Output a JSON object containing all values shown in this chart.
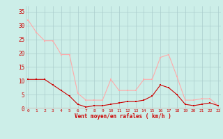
{
  "x": [
    0,
    1,
    2,
    3,
    4,
    5,
    6,
    7,
    8,
    9,
    10,
    11,
    12,
    13,
    14,
    15,
    16,
    17,
    18,
    19,
    20,
    21,
    22,
    23
  ],
  "vent_moyen": [
    10.5,
    10.5,
    10.5,
    8.5,
    6.5,
    4.5,
    1.5,
    0.5,
    1.0,
    1.0,
    1.5,
    2.0,
    2.5,
    2.5,
    3.0,
    4.5,
    8.5,
    7.5,
    5.0,
    1.5,
    1.0,
    1.5,
    2.0,
    1.0
  ],
  "rafales": [
    32.0,
    27.5,
    24.5,
    24.5,
    19.5,
    19.5,
    5.5,
    3.0,
    3.0,
    3.0,
    10.5,
    6.5,
    6.5,
    6.5,
    10.5,
    10.5,
    18.5,
    19.5,
    11.5,
    3.0,
    3.0,
    3.5,
    3.5,
    1.0
  ],
  "moyen_color": "#cc0000",
  "rafales_color": "#ffaaaa",
  "bg_color": "#cceee8",
  "grid_color": "#aacccc",
  "xlabel": "Vent moyen/en rafales ( km/h )",
  "ylabel_ticks": [
    0,
    5,
    10,
    15,
    20,
    25,
    30,
    35
  ],
  "ylim": [
    0,
    37
  ],
  "xlim": [
    -0.3,
    23.3
  ]
}
